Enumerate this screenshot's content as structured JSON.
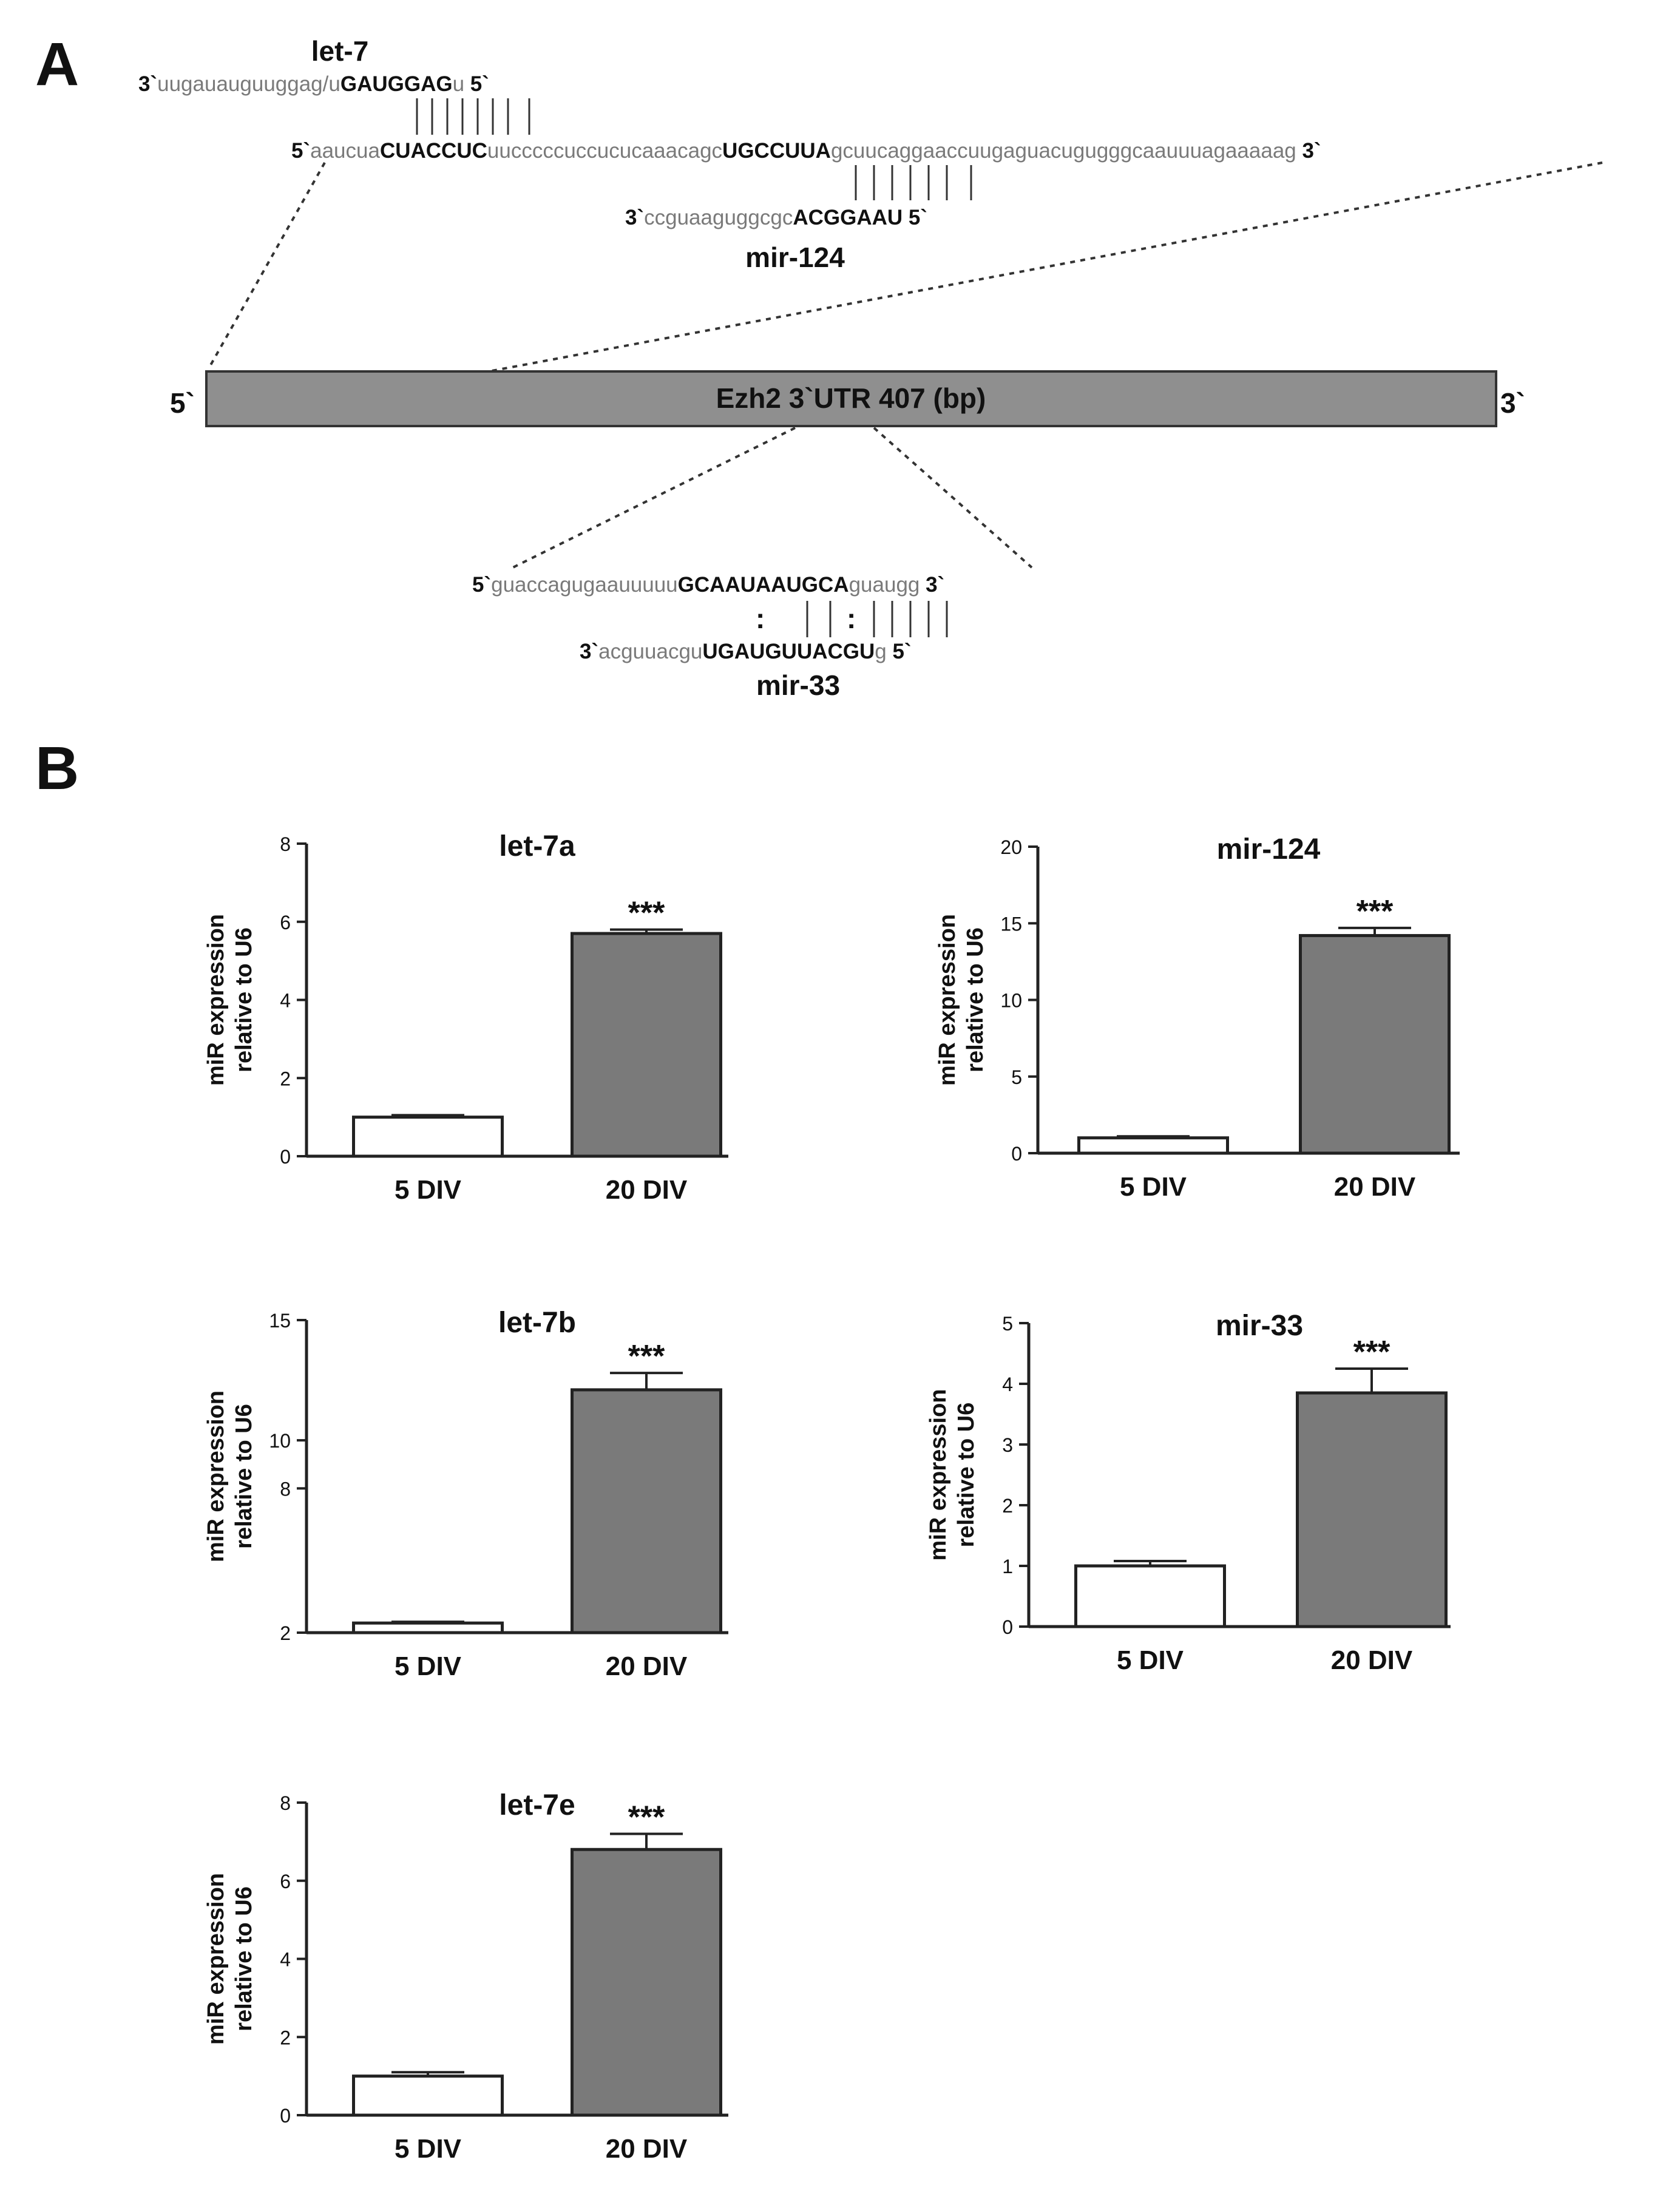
{
  "panels": {
    "a_letter": "A",
    "b_letter": "B"
  },
  "panel_a": {
    "utr_label": "Ezh2 3`UTR 407 (bp)",
    "utr_end5": "5`",
    "utr_end3": "3`",
    "let7_name": "let-7",
    "let7_seq": [
      {
        "t": "3`",
        "s": "end"
      },
      {
        "t": "uugauauguuggag/u",
        "s": "grey"
      },
      {
        "t": "GAUGGAG",
        "s": "bold"
      },
      {
        "t": "u",
        "s": "grey"
      },
      {
        "t": " 5`",
        "s": "end"
      }
    ],
    "utr_top_seq": [
      {
        "t": "5`",
        "s": "end"
      },
      {
        "t": "aaucua",
        "s": "grey"
      },
      {
        "t": "CUACCUC",
        "s": "bold"
      },
      {
        "t": "uucccccuccucucaaacagc",
        "s": "grey"
      },
      {
        "t": "UGCCUUA",
        "s": "bold"
      },
      {
        "t": "gcuucaggaaccuugaguacugugggcaauuuagaaaaag",
        "s": "grey"
      },
      {
        "t": " 3`",
        "s": "end"
      }
    ],
    "mir124_name": "mir-124",
    "mir124_seq": [
      {
        "t": "3`",
        "s": "end"
      },
      {
        "t": "ccguaaguggcgc",
        "s": "grey"
      },
      {
        "t": "ACGGAAU",
        "s": "bold"
      },
      {
        "t": " 5`",
        "s": "end"
      }
    ],
    "utr_bottom_seq": [
      {
        "t": "5`",
        "s": "end"
      },
      {
        "t": "guaccagugaauuuuu",
        "s": "grey"
      },
      {
        "t": "GCAAUAAUGCA",
        "s": "bold"
      },
      {
        "t": "guaugg",
        "s": "grey"
      },
      {
        "t": " 3`",
        "s": "end"
      }
    ],
    "mir33_seq": [
      {
        "t": "3`",
        "s": "end"
      },
      {
        "t": "acguuacgu",
        "s": "grey"
      },
      {
        "t": "UGAUGUUACGU",
        "s": "bold"
      },
      {
        "t": "g",
        "s": "grey"
      },
      {
        "t": " 5`",
        "s": "end"
      }
    ],
    "mir33_name": "mir-33",
    "wobble_mark": ":"
  },
  "chart_data": [
    {
      "type": "bar",
      "title": "let-7a",
      "categories": [
        "5 DIV",
        "20 DIV"
      ],
      "values": [
        1.0,
        5.7
      ],
      "errors": [
        0.05,
        0.1
      ],
      "significance": [
        "",
        "***"
      ],
      "ylabel": "miR expression relative to U6",
      "ylabel_lines": [
        "miR expression",
        "relative to U6"
      ],
      "ylim": [
        0,
        8
      ],
      "yticks": [
        0,
        2,
        4,
        6,
        8
      ],
      "bar_colors": [
        "#ffffff",
        "#7a7a7a"
      ]
    },
    {
      "type": "bar",
      "title": "mir-124",
      "categories": [
        "5 DIV",
        "20 DIV"
      ],
      "values": [
        1.0,
        14.2
      ],
      "errors": [
        0.1,
        0.5
      ],
      "significance": [
        "",
        "***"
      ],
      "ylabel": "miR expression relative to U6",
      "ylabel_lines": [
        "miR expression",
        "relative to U6"
      ],
      "ylim": [
        0,
        20
      ],
      "yticks": [
        0,
        5,
        10,
        15,
        20
      ],
      "bar_colors": [
        "#ffffff",
        "#7a7a7a"
      ]
    },
    {
      "type": "bar",
      "title": "let-7b",
      "categories": [
        "5 DIV",
        "20 DIV"
      ],
      "values": [
        2.4,
        12.1
      ],
      "errors": [
        0.05,
        0.7
      ],
      "significance": [
        "",
        "***"
      ],
      "ylabel": "miR expression relative to U6",
      "ylabel_lines": [
        "miR expression",
        "relative to U6"
      ],
      "ylim": [
        2,
        15
      ],
      "yticks": [
        2,
        8,
        10,
        15
      ],
      "bar_colors": [
        "#ffffff",
        "#7a7a7a"
      ]
    },
    {
      "type": "bar",
      "title": "mir-33",
      "categories": [
        "5 DIV",
        "20 DIV"
      ],
      "values": [
        1.0,
        3.85
      ],
      "errors": [
        0.08,
        0.4
      ],
      "significance": [
        "",
        "***"
      ],
      "ylabel": "miR expression relative to U6",
      "ylabel_lines": [
        "miR expression",
        "relative to U6"
      ],
      "ylim": [
        0,
        5
      ],
      "yticks": [
        0,
        1,
        2,
        3,
        4,
        5
      ],
      "bar_colors": [
        "#ffffff",
        "#7a7a7a"
      ]
    },
    {
      "type": "bar",
      "title": "let-7e",
      "categories": [
        "5 DIV",
        "20 DIV"
      ],
      "values": [
        1.0,
        6.8
      ],
      "errors": [
        0.1,
        0.4
      ],
      "significance": [
        "",
        "***"
      ],
      "ylabel": "miR expression relative to U6",
      "ylabel_lines": [
        "miR expression",
        "relative to U6"
      ],
      "ylim": [
        0,
        8
      ],
      "yticks": [
        0,
        2,
        4,
        6,
        8
      ],
      "bar_colors": [
        "#ffffff",
        "#7a7a7a"
      ]
    }
  ]
}
